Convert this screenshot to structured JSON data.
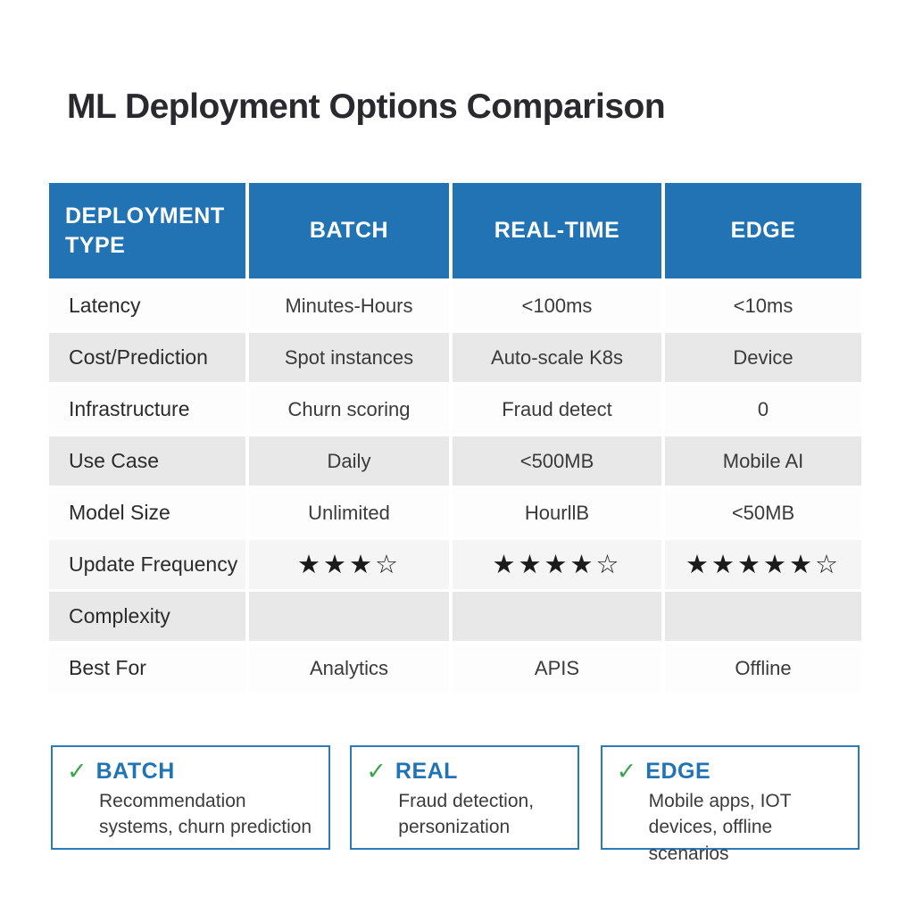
{
  "title": "ML Deployment Options Comparison",
  "colors": {
    "header_blue": "#2173b4",
    "row_gray": "#e8e8e8",
    "row_light": "#f5f5f5",
    "check_green": "#3aa54c",
    "card_border_blue": "#2b7bb9",
    "star_black": "#1b1b1b"
  },
  "table": {
    "headers": {
      "col0": "DEPLOYMENT TYPE",
      "col1": "BATCH",
      "col2": "REAL-TIME",
      "col3": "EDGE"
    },
    "rows": [
      {
        "label": "Latency",
        "batch": "Minutes-Hours",
        "realtime": "<100ms",
        "edge": "<10ms"
      },
      {
        "label": "Cost/Prediction",
        "batch": "Spot instances",
        "realtime": "Auto-scale K8s",
        "edge": "Device"
      },
      {
        "label": "Infrastructure",
        "batch": "Churn scoring",
        "realtime": "Fraud detect",
        "edge": "0"
      },
      {
        "label": "Use Case",
        "batch": "Daily",
        "realtime": "<500MB",
        "edge": "Mobile AI"
      },
      {
        "label": "Model Size",
        "batch": "Unlimited",
        "realtime": "HourllB",
        "edge": "<50MB"
      },
      {
        "label": "Update Frequency",
        "batch": "★★★☆",
        "realtime": "★★★★☆",
        "edge": "★★★★★☆"
      },
      {
        "label": "Complexity",
        "batch": "",
        "realtime": "",
        "edge": ""
      },
      {
        "label": "Best For",
        "batch": "Analytics",
        "realtime": "APIS",
        "edge": "Offline"
      }
    ]
  },
  "cards": [
    {
      "check": "✓",
      "title": "BATCH",
      "description": "Recommendation systems, churn prediction"
    },
    {
      "check": "✓",
      "title": "REAL",
      "description": "Fraud detection, personization"
    },
    {
      "check": "✓",
      "title": "EDGE",
      "description": "Mobile apps, IOT devices, offline scenarios"
    }
  ]
}
